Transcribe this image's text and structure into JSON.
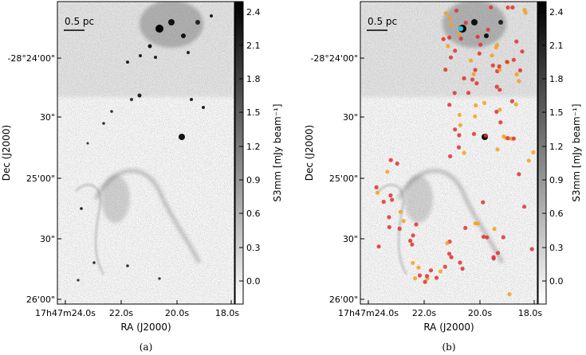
{
  "figure": {
    "panels": [
      {
        "id": "a",
        "caption": "(a)",
        "scalebar_label": "0.5 pc",
        "xlabel": "RA (J2000)",
        "ylabel": "Dec (J2000)",
        "xticks": [
          "17h47m24.0s",
          "22.0s",
          "20.0s",
          "18.0s"
        ],
        "yticks": [
          "-28°24'00\"",
          "30\"",
          "25'00\"",
          "30\"",
          "26'00\""
        ],
        "colorbar": {
          "label": "S3mm [mJy beam⁻¹]",
          "ticks": [
            "2.4",
            "2.1",
            "1.8",
            "1.5",
            "1.2",
            "0.9",
            "0.6",
            "0.3",
            "0.0"
          ],
          "range": [
            -0.2,
            2.5
          ]
        },
        "markers": false
      },
      {
        "id": "b",
        "caption": "(b)",
        "scalebar_label": "0.5 pc",
        "xlabel": "RA (J2000)",
        "ylabel": "Dec (J2000)",
        "xticks": [
          "17h47m24.0s",
          "22.0s",
          "20.0s",
          "18.0s"
        ],
        "yticks": [
          "-28°24'00\"",
          "30\"",
          "25'00\"",
          "30\"",
          "26'00\""
        ],
        "colorbar": {
          "label": "S3mm [mJy beam⁻¹]",
          "ticks": [
            "2.4",
            "2.1",
            "1.8",
            "1.5",
            "1.2",
            "0.9",
            "0.6",
            "0.3",
            "0.0"
          ],
          "range": [
            -0.2,
            2.5
          ]
        },
        "markers": true
      }
    ],
    "colors": {
      "marker_red": "#e03030",
      "marker_orange": "#f5a020",
      "marker_cyan": "#30c0e0",
      "map_background": "#f6f6f6"
    }
  }
}
